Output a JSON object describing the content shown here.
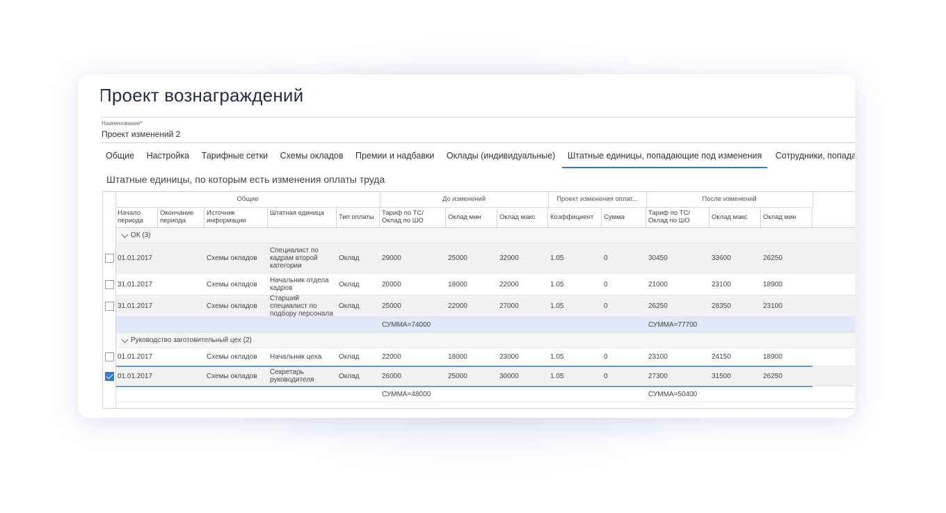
{
  "page_title": "Проект вознаграждений",
  "name_field": {
    "label": "Наименование*",
    "value": "Проект изменений 2"
  },
  "tabs": [
    {
      "label": "Общие"
    },
    {
      "label": "Настройка"
    },
    {
      "label": "Тарифные сетки"
    },
    {
      "label": "Схемы окладов"
    },
    {
      "label": "Премии и надбавки"
    },
    {
      "label": "Оклады (индивидуальные)"
    },
    {
      "label": "Штатные единицы, попадающие под изменения",
      "active": true
    },
    {
      "label": "Сотрудники, попада"
    }
  ],
  "section_title": "Штатные единицы, по которым есть изменения оплаты труда",
  "table": {
    "header_groups": [
      "Общие",
      "До изменений",
      "Проект изменения оплат...",
      "После изменений"
    ],
    "columns": [
      "Начало периода",
      "Окончание периода",
      "Источник информации",
      "Штатная единица",
      "Тип оплаты",
      "Тариф по ТС/ Оклад по ШО",
      "Оклад мин",
      "Оклад макс",
      "Коэффициент",
      "Сумма",
      "Тариф по ТС/ Оклад по ШО",
      "Оклад макс",
      "Оклад мин"
    ],
    "groups": [
      {
        "label": "ОК (3)",
        "rows": [
          {
            "checked": false,
            "cells": [
              "01.01.2017",
              "",
              "Схемы окладов",
              "Специалист по кадрам второй категории",
              "Оклад",
              "29000",
              "25000",
              "32000",
              "1.05",
              "0",
              "30450",
              "33600",
              "26250"
            ]
          },
          {
            "checked": false,
            "cells": [
              "31.01.2017",
              "",
              "Схемы окладов",
              "Начальник отдела кадров",
              "Оклад",
              "20000",
              "18000",
              "22000",
              "1.05",
              "0",
              "21000",
              "23100",
              "18900"
            ]
          },
          {
            "checked": false,
            "cells": [
              "31.01.2017",
              "",
              "Схемы окладов",
              "Старший специалист по подбору персонала",
              "Оклад",
              "25000",
              "22000",
              "27000",
              "1.05",
              "0",
              "26250",
              "28350",
              "23100"
            ]
          }
        ],
        "sum_before": "СУММА=74000",
        "sum_after": "СУММА=77700"
      },
      {
        "label": "Руководство заготовительный цех (2)",
        "rows": [
          {
            "checked": false,
            "cells": [
              "01.01.2017",
              "",
              "Схемы окладов",
              "Начальник цеха",
              "Оклад",
              "22000",
              "18000",
              "23000",
              "1.05",
              "0",
              "23100",
              "24150",
              "18900"
            ]
          },
          {
            "checked": true,
            "cells": [
              "01.01.2017",
              "",
              "Схемы окладов",
              "Секретарь руководителя",
              "Оклад",
              "26000",
              "25000",
              "30000",
              "1.05",
              "0",
              "27300",
              "31500",
              "26250"
            ]
          }
        ],
        "sum_before": "СУММА=48000",
        "sum_after": "СУММА=50400"
      }
    ]
  }
}
